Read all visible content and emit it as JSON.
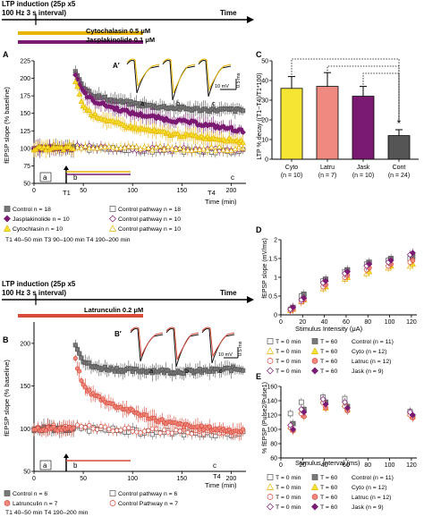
{
  "colors": {
    "control": "#7a7a7a",
    "jask": "#7b1a72",
    "cyto": "#e8b400",
    "cyto_fill": "#f4e633",
    "latru": "#d84b3a",
    "latru_fill": "#f08a80",
    "cont_bar": "#555555"
  },
  "top": {
    "ltp_label_1": "LTP induction (25p x5",
    "ltp_label_2": "100 Hz 3 s interval)",
    "time_label": "Time",
    "bar1_label": "Cytochalasin 0.5 μM",
    "bar2_label": "Jasplakinolide 0.1 μM"
  },
  "mid": {
    "ltp_label_1": "LTP induction (25p x5",
    "ltp_label_2": "100 Hz 3 s interval)",
    "time_label": "Time",
    "bar_label": "Latrunculin 0.2 μM"
  },
  "panel_labels": {
    "A": "A",
    "Ap": "A′",
    "B": "B",
    "Bp": "B′",
    "C": "C",
    "D": "D",
    "E": "E"
  },
  "panelA": {
    "ylabel": "fEPSP slope (% baseline)",
    "xlabel": "Time (min)",
    "yticks": [
      "50",
      "75",
      "100",
      "125",
      "150",
      "175",
      "200",
      "225"
    ],
    "xticks": [
      "0",
      "50",
      "100",
      "150",
      "200"
    ],
    "t_labels": [
      "T1",
      "T4"
    ],
    "abc": [
      "a",
      "b",
      "c"
    ],
    "scale_v": "10 mV",
    "scale_t": "0.5 ms",
    "legend": [
      {
        "text": "Control n = 18",
        "series": "control"
      },
      {
        "text": "Control pathway n = 18",
        "series": "control_pw"
      },
      {
        "text": "Jasplakinolide n = 10",
        "series": "jask"
      },
      {
        "text": "Control pathway n = 10",
        "series": "jask_pw"
      },
      {
        "text": "Cytochlasin n = 10",
        "series": "cyto"
      },
      {
        "text": "Control pathway n = 10",
        "series": "cyto_pw"
      }
    ],
    "footnote": "T1 40–50 min T3 90–100 min  T4 190–200 min"
  },
  "panelB": {
    "ylabel": "fEPSP slope (% baseline)",
    "xlabel": "Time (min)",
    "yticks": [
      "50",
      "100",
      "150",
      "200"
    ],
    "xticks": [
      "0",
      "50",
      "100",
      "150",
      "200"
    ],
    "t_labels": [
      "T1",
      "T4"
    ],
    "abc": [
      "a",
      "b",
      "c"
    ],
    "scale_v": "10 mV",
    "scale_t": "0.5 ms",
    "legend": [
      {
        "text": "Control n = 6",
        "series": "control"
      },
      {
        "text": "Control pathway n = 6",
        "series": "control_pw"
      },
      {
        "text": "Latrunculin n = 7",
        "series": "latru"
      },
      {
        "text": "Control Pathway n = 7",
        "series": "latru_pw"
      }
    ],
    "footnote": "T1 40–50 min T4 190–200 min"
  },
  "panelC": {
    "ylabel": "LTP % decay ((T1−T4)/T1*100)",
    "yticks": [
      "0",
      "10",
      "20",
      "30",
      "40",
      "50"
    ],
    "star": "*"
  },
  "panelD": {
    "ylabel": "fEPSP slope (mV/ms)",
    "xlabel": "Stimulus Intensity (μA)",
    "yticks": [
      "0",
      "0.5",
      "1",
      "1.5",
      "2"
    ],
    "xticks": [
      "0",
      "20",
      "40",
      "60",
      "80",
      "100",
      "120"
    ],
    "legend": [
      {
        "t0": "T = 0 min",
        "t60": "T = 60",
        "name": "Control (n = 11)",
        "series": "control"
      },
      {
        "t0": "T = 0 min",
        "t60": "T = 60",
        "name": "Cyto (n = 12)",
        "series": "cyto"
      },
      {
        "t0": "T = 0 min",
        "t60": "T = 60",
        "name": "Latruc (n = 12)",
        "series": "latru"
      },
      {
        "t0": "T = 0 min",
        "t60": "T = 60",
        "name": "Jask (n = 9)",
        "series": "jask"
      }
    ]
  },
  "panelE": {
    "ylabel": "% fEPSP (Pulse2/Pulse1)",
    "xlabel": "Stimulus Interval (ms)",
    "yticks": [
      "60",
      "80",
      "100",
      "120",
      "140",
      "160"
    ],
    "xticks": [
      "0",
      "20",
      "40",
      "60",
      "80",
      "100",
      "120"
    ],
    "legend": [
      {
        "t0": "T = 0 min",
        "t60": "T = 60",
        "name": "Control (n = 11)",
        "series": "control"
      },
      {
        "t0": "T = 0 min",
        "t60": "T = 60",
        "name": "Cyto (n = 12)",
        "series": "cyto"
      },
      {
        "t0": "T = 0 min",
        "t60": "T = 60",
        "name": "Latruc (n = 12)",
        "series": "latru"
      },
      {
        "t0": "T = 0 min",
        "t60": "T = 60",
        "name": "Jask (n = 9)",
        "series": "jask"
      }
    ]
  },
  "chart_data": [
    {
      "id": "A",
      "type": "line",
      "xlabel": "Time (min)",
      "ylabel": "fEPSP slope (% baseline)",
      "xlim": [
        0,
        215
      ],
      "ylim": [
        50,
        225
      ],
      "series": [
        {
          "name": "Control",
          "x": [
            0,
            20,
            40,
            42,
            50,
            60,
            80,
            100,
            120,
            140,
            160,
            180,
            200,
            212
          ],
          "y": [
            100,
            100,
            100,
            210,
            188,
            176,
            168,
            164,
            160,
            158,
            156,
            155,
            155,
            154
          ]
        },
        {
          "name": "Jasplakinolide",
          "x": [
            0,
            20,
            40,
            42,
            50,
            60,
            80,
            100,
            120,
            140,
            160,
            180,
            200,
            212
          ],
          "y": [
            100,
            100,
            100,
            205,
            180,
            168,
            158,
            150,
            145,
            140,
            137,
            132,
            128,
            124
          ]
        },
        {
          "name": "Cytochlasin",
          "x": [
            0,
            20,
            40,
            42,
            50,
            60,
            80,
            100,
            120,
            140,
            160,
            180,
            200,
            212
          ],
          "y": [
            100,
            100,
            100,
            195,
            160,
            148,
            137,
            130,
            125,
            120,
            118,
            115,
            112,
            110
          ]
        },
        {
          "name": "Control pathway",
          "x": [
            0,
            50,
            100,
            150,
            212
          ],
          "y": [
            100,
            100,
            98,
            97,
            96
          ]
        }
      ]
    },
    {
      "id": "B",
      "type": "line",
      "xlabel": "Time (min)",
      "ylabel": "fEPSP slope (% baseline)",
      "xlim": [
        0,
        215
      ],
      "ylim": [
        50,
        225
      ],
      "series": [
        {
          "name": "Control",
          "x": [
            0,
            20,
            40,
            42,
            50,
            60,
            80,
            100,
            120,
            140,
            160,
            180,
            200,
            212
          ],
          "y": [
            100,
            100,
            100,
            200,
            180,
            172,
            170,
            168,
            168,
            167,
            167,
            168,
            170,
            170
          ]
        },
        {
          "name": "Latrunculin",
          "x": [
            0,
            20,
            40,
            42,
            50,
            60,
            80,
            100,
            120,
            140,
            160,
            180,
            200,
            212
          ],
          "y": [
            100,
            100,
            100,
            180,
            150,
            140,
            128,
            120,
            112,
            106,
            102,
            100,
            98,
            97
          ]
        },
        {
          "name": "Control pathway",
          "x": [
            0,
            50,
            100,
            150,
            212
          ],
          "y": [
            100,
            100,
            97,
            95,
            94
          ]
        }
      ]
    },
    {
      "id": "C",
      "type": "bar",
      "ylabel": "LTP % decay ((T1−T4)/T1*100)",
      "categories": [
        "Cyto\n(n = 10)",
        "Latru\n(n = 7)",
        "Jask\n(n = 10)",
        "Cont\n(n = 24)"
      ],
      "values": [
        36,
        37,
        32,
        12
      ],
      "errors": [
        6,
        7,
        5,
        3
      ],
      "ylim": [
        0,
        50
      ]
    },
    {
      "id": "D",
      "type": "scatter",
      "xlabel": "Stimulus Intensity (μA)",
      "ylabel": "fEPSP slope (mV/ms)",
      "xlim": [
        0,
        125
      ],
      "ylim": [
        0,
        2
      ],
      "x": [
        10,
        20,
        40,
        60,
        80,
        100,
        120
      ],
      "series": [
        {
          "name": "Control T = 0 min",
          "values": [
            0.15,
            0.5,
            0.9,
            1.15,
            1.35,
            1.45,
            1.5
          ]
        },
        {
          "name": "Control T = 60",
          "values": [
            0.2,
            0.55,
            0.95,
            1.2,
            1.4,
            1.5,
            1.55
          ]
        },
        {
          "name": "Cyto T = 0 min",
          "values": [
            0.12,
            0.35,
            0.7,
            0.95,
            1.1,
            1.25,
            1.3
          ]
        },
        {
          "name": "Cyto T = 60",
          "values": [
            0.15,
            0.4,
            0.75,
            1.0,
            1.15,
            1.3,
            1.35
          ]
        },
        {
          "name": "Latruc T = 0 min",
          "values": [
            0.12,
            0.35,
            0.75,
            1.0,
            1.2,
            1.3,
            1.4
          ]
        },
        {
          "name": "Latruc T = 60",
          "values": [
            0.15,
            0.4,
            0.8,
            1.05,
            1.25,
            1.35,
            1.45
          ]
        },
        {
          "name": "Jask T = 0 min",
          "values": [
            0.15,
            0.4,
            0.85,
            1.1,
            1.3,
            1.4,
            1.6
          ]
        },
        {
          "name": "Jask T = 60",
          "values": [
            0.2,
            0.45,
            0.9,
            1.15,
            1.35,
            1.45,
            1.65
          ]
        }
      ]
    },
    {
      "id": "E",
      "type": "scatter",
      "xlabel": "Stimulus Interval (ms)",
      "ylabel": "% fEPSP (Pulse2/Pulse1)",
      "xlim": [
        0,
        125
      ],
      "ylim": [
        60,
        160
      ],
      "x": [
        10,
        20,
        40,
        60,
        120
      ],
      "series": [
        {
          "name": "Control T = 0 min",
          "values": [
            122,
            138,
            145,
            143,
            125
          ]
        },
        {
          "name": "Control T = 60",
          "values": [
            108,
            128,
            138,
            132,
            118
          ]
        },
        {
          "name": "Cyto T = 0 min",
          "values": [
            104,
            125,
            140,
            135,
            122
          ]
        },
        {
          "name": "Cyto T = 60",
          "values": [
            100,
            120,
            130,
            128,
            118
          ]
        },
        {
          "name": "Latruc T = 0 min",
          "values": [
            102,
            122,
            137,
            132,
            120
          ]
        },
        {
          "name": "Latruc T = 60",
          "values": [
            98,
            118,
            130,
            126,
            116
          ]
        },
        {
          "name": "Jask T = 0 min",
          "values": [
            106,
            128,
            142,
            138,
            124
          ]
        },
        {
          "name": "Jask T = 60",
          "values": [
            100,
            124,
            135,
            130,
            120
          ]
        }
      ]
    }
  ]
}
